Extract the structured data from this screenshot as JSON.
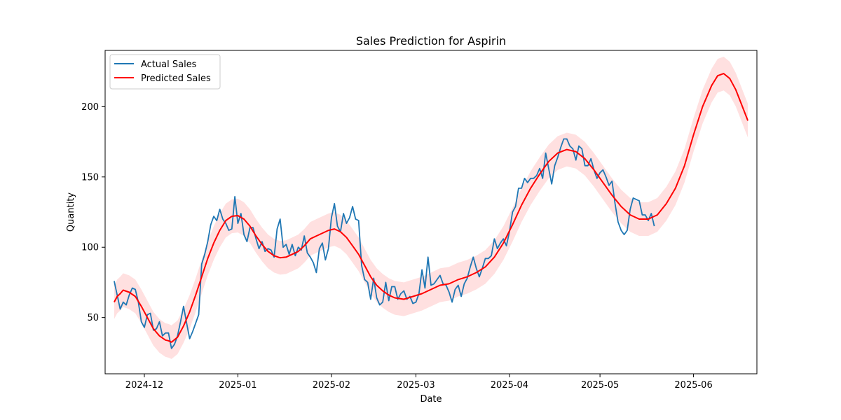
{
  "chart_data": {
    "type": "line",
    "title": "Sales Prediction for Aspirin",
    "xlabel": "Date",
    "ylabel": "Quantity",
    "xlim": [
      "2024-11-18",
      "2025-06-22"
    ],
    "ylim": [
      10,
      240
    ],
    "x_ticks": [
      "2024-12-01",
      "2025-01-01",
      "2025-02-01",
      "2025-03-01",
      "2025-04-01",
      "2025-05-01",
      "2025-06-01"
    ],
    "x_tick_labels": [
      "2024-12",
      "2025-01",
      "2025-02",
      "2025-03",
      "2025-04",
      "2025-05",
      "2025-06"
    ],
    "y_ticks": [
      50,
      100,
      150,
      200
    ],
    "grid": false,
    "legend": "upper-left",
    "colors": {
      "actual": "#1f77b4",
      "predicted": "#ff0000",
      "band": "#ff0000"
    },
    "series": [
      {
        "name": "Actual Sales",
        "kind": "line",
        "points": [
          [
            "2024-11-21",
            76
          ],
          [
            "2024-11-22",
            66
          ],
          [
            "2024-11-23",
            56
          ],
          [
            "2024-11-24",
            61
          ],
          [
            "2024-11-25",
            59
          ],
          [
            "2024-11-26",
            66
          ],
          [
            "2024-11-27",
            71
          ],
          [
            "2024-11-28",
            70
          ],
          [
            "2024-11-29",
            61
          ],
          [
            "2024-11-30",
            47
          ],
          [
            "2024-12-01",
            43
          ],
          [
            "2024-12-02",
            52
          ],
          [
            "2024-12-03",
            53
          ],
          [
            "2024-12-04",
            41
          ],
          [
            "2024-12-05",
            42
          ],
          [
            "2024-12-06",
            47
          ],
          [
            "2024-12-07",
            37
          ],
          [
            "2024-12-08",
            39
          ],
          [
            "2024-12-09",
            39
          ],
          [
            "2024-12-10",
            28
          ],
          [
            "2024-12-11",
            31
          ],
          [
            "2024-12-12",
            37
          ],
          [
            "2024-12-13",
            47
          ],
          [
            "2024-12-14",
            58
          ],
          [
            "2024-12-15",
            46
          ],
          [
            "2024-12-16",
            35
          ],
          [
            "2024-12-17",
            40
          ],
          [
            "2024-12-18",
            46
          ],
          [
            "2024-12-19",
            52
          ],
          [
            "2024-12-20",
            88
          ],
          [
            "2024-12-21",
            95
          ],
          [
            "2024-12-22",
            104
          ],
          [
            "2024-12-23",
            116
          ],
          [
            "2024-12-24",
            122
          ],
          [
            "2024-12-25",
            119
          ],
          [
            "2024-12-26",
            127
          ],
          [
            "2024-12-27",
            120
          ],
          [
            "2024-12-28",
            117
          ],
          [
            "2024-12-29",
            112
          ],
          [
            "2024-12-30",
            113
          ],
          [
            "2024-12-31",
            136
          ],
          [
            "2025-01-01",
            117
          ],
          [
            "2025-01-02",
            124
          ],
          [
            "2025-01-03",
            109
          ],
          [
            "2025-01-04",
            104
          ],
          [
            "2025-01-05",
            114
          ],
          [
            "2025-01-06",
            114
          ],
          [
            "2025-01-07",
            106
          ],
          [
            "2025-01-08",
            99
          ],
          [
            "2025-01-09",
            104
          ],
          [
            "2025-01-10",
            97
          ],
          [
            "2025-01-11",
            99
          ],
          [
            "2025-01-12",
            98
          ],
          [
            "2025-01-13",
            93
          ],
          [
            "2025-01-14",
            113
          ],
          [
            "2025-01-15",
            120
          ],
          [
            "2025-01-16",
            100
          ],
          [
            "2025-01-17",
            102
          ],
          [
            "2025-01-18",
            95
          ],
          [
            "2025-01-19",
            102
          ],
          [
            "2025-01-20",
            94
          ],
          [
            "2025-01-21",
            100
          ],
          [
            "2025-01-22",
            98
          ],
          [
            "2025-01-23",
            108
          ],
          [
            "2025-01-24",
            96
          ],
          [
            "2025-01-25",
            93
          ],
          [
            "2025-01-26",
            89
          ],
          [
            "2025-01-27",
            82
          ],
          [
            "2025-01-28",
            99
          ],
          [
            "2025-01-29",
            103
          ],
          [
            "2025-01-30",
            91
          ],
          [
            "2025-01-31",
            99
          ],
          [
            "2025-02-01",
            121
          ],
          [
            "2025-02-02",
            131
          ],
          [
            "2025-02-03",
            115
          ],
          [
            "2025-02-04",
            111
          ],
          [
            "2025-02-05",
            124
          ],
          [
            "2025-02-06",
            117
          ],
          [
            "2025-02-07",
            121
          ],
          [
            "2025-02-08",
            129
          ],
          [
            "2025-02-09",
            120
          ],
          [
            "2025-02-10",
            119
          ],
          [
            "2025-02-11",
            87
          ],
          [
            "2025-02-12",
            77
          ],
          [
            "2025-02-13",
            75
          ],
          [
            "2025-02-14",
            63
          ],
          [
            "2025-02-15",
            78
          ],
          [
            "2025-02-16",
            64
          ],
          [
            "2025-02-17",
            59
          ],
          [
            "2025-02-18",
            61
          ],
          [
            "2025-02-19",
            75
          ],
          [
            "2025-02-20",
            62
          ],
          [
            "2025-02-21",
            72
          ],
          [
            "2025-02-22",
            72
          ],
          [
            "2025-02-23",
            63
          ],
          [
            "2025-02-24",
            67
          ],
          [
            "2025-02-25",
            69
          ],
          [
            "2025-02-26",
            63
          ],
          [
            "2025-02-27",
            65
          ],
          [
            "2025-02-28",
            60
          ],
          [
            "2025-03-01",
            61
          ],
          [
            "2025-03-02",
            67
          ],
          [
            "2025-03-03",
            84
          ],
          [
            "2025-03-04",
            71
          ],
          [
            "2025-03-05",
            93
          ],
          [
            "2025-03-06",
            73
          ],
          [
            "2025-03-07",
            74
          ],
          [
            "2025-03-08",
            77
          ],
          [
            "2025-03-09",
            80
          ],
          [
            "2025-03-10",
            74
          ],
          [
            "2025-03-11",
            73
          ],
          [
            "2025-03-12",
            68
          ],
          [
            "2025-03-13",
            61
          ],
          [
            "2025-03-14",
            70
          ],
          [
            "2025-03-15",
            73
          ],
          [
            "2025-03-16",
            65
          ],
          [
            "2025-03-17",
            74
          ],
          [
            "2025-03-18",
            78
          ],
          [
            "2025-03-19",
            86
          ],
          [
            "2025-03-20",
            93
          ],
          [
            "2025-03-21",
            85
          ],
          [
            "2025-03-22",
            79
          ],
          [
            "2025-03-23",
            85
          ],
          [
            "2025-03-24",
            92
          ],
          [
            "2025-03-25",
            92
          ],
          [
            "2025-03-26",
            94
          ],
          [
            "2025-03-27",
            106
          ],
          [
            "2025-03-28",
            99
          ],
          [
            "2025-03-29",
            103
          ],
          [
            "2025-03-30",
            106
          ],
          [
            "2025-03-31",
            101
          ],
          [
            "2025-04-01",
            111
          ],
          [
            "2025-04-02",
            125
          ],
          [
            "2025-04-03",
            129
          ],
          [
            "2025-04-04",
            142
          ],
          [
            "2025-04-05",
            142
          ],
          [
            "2025-04-06",
            149
          ],
          [
            "2025-04-07",
            146
          ],
          [
            "2025-04-08",
            149
          ],
          [
            "2025-04-09",
            149
          ],
          [
            "2025-04-10",
            151
          ],
          [
            "2025-04-11",
            156
          ],
          [
            "2025-04-12",
            149
          ],
          [
            "2025-04-13",
            167
          ],
          [
            "2025-04-14",
            156
          ],
          [
            "2025-04-15",
            145
          ],
          [
            "2025-04-16",
            158
          ],
          [
            "2025-04-17",
            164
          ],
          [
            "2025-04-18",
            171
          ],
          [
            "2025-04-19",
            177
          ],
          [
            "2025-04-20",
            177
          ],
          [
            "2025-04-21",
            172
          ],
          [
            "2025-04-22",
            170
          ],
          [
            "2025-04-23",
            162
          ],
          [
            "2025-04-24",
            172
          ],
          [
            "2025-04-25",
            170
          ],
          [
            "2025-04-26",
            158
          ],
          [
            "2025-04-27",
            158
          ],
          [
            "2025-04-28",
            163
          ],
          [
            "2025-04-29",
            155
          ],
          [
            "2025-04-30",
            149
          ],
          [
            "2025-05-01",
            153
          ],
          [
            "2025-05-02",
            155
          ],
          [
            "2025-05-03",
            150
          ],
          [
            "2025-05-04",
            144
          ],
          [
            "2025-05-05",
            147
          ],
          [
            "2025-05-06",
            131
          ],
          [
            "2025-05-07",
            118
          ],
          [
            "2025-05-08",
            112
          ],
          [
            "2025-05-09",
            109
          ],
          [
            "2025-05-10",
            112
          ],
          [
            "2025-05-11",
            127
          ],
          [
            "2025-05-12",
            135
          ],
          [
            "2025-05-13",
            134
          ],
          [
            "2025-05-14",
            133
          ],
          [
            "2025-05-15",
            123
          ],
          [
            "2025-05-16",
            123
          ],
          [
            "2025-05-17",
            119
          ],
          [
            "2025-05-18",
            124
          ],
          [
            "2025-05-19",
            115
          ]
        ]
      },
      {
        "name": "Predicted Sales",
        "kind": "line",
        "points": [
          [
            "2024-11-21",
            61
          ],
          [
            "2024-11-22",
            65
          ],
          [
            "2024-11-23",
            67
          ],
          [
            "2024-11-24",
            69.5
          ],
          [
            "2024-11-26",
            68
          ],
          [
            "2024-11-28",
            65
          ],
          [
            "2024-11-30",
            58
          ],
          [
            "2024-12-02",
            50
          ],
          [
            "2024-12-04",
            42
          ],
          [
            "2024-12-06",
            37
          ],
          [
            "2024-12-08",
            34
          ],
          [
            "2024-12-09",
            33.5
          ],
          [
            "2024-12-10",
            32.5
          ],
          [
            "2024-12-12",
            36
          ],
          [
            "2024-12-14",
            44
          ],
          [
            "2024-12-16",
            54
          ],
          [
            "2024-12-18",
            66
          ],
          [
            "2024-12-20",
            79
          ],
          [
            "2024-12-22",
            92
          ],
          [
            "2024-12-24",
            103
          ],
          [
            "2024-12-26",
            112
          ],
          [
            "2024-12-28",
            119
          ],
          [
            "2024-12-30",
            122
          ],
          [
            "2025-01-01",
            122.5
          ],
          [
            "2025-01-03",
            120
          ],
          [
            "2025-01-05",
            115
          ],
          [
            "2025-01-07",
            108
          ],
          [
            "2025-01-09",
            102
          ],
          [
            "2025-01-11",
            97
          ],
          [
            "2025-01-13",
            94
          ],
          [
            "2025-01-15",
            92.5
          ],
          [
            "2025-01-17",
            93
          ],
          [
            "2025-01-19",
            95
          ],
          [
            "2025-01-21",
            97
          ],
          [
            "2025-01-23",
            101
          ],
          [
            "2025-01-25",
            106
          ],
          [
            "2025-01-27",
            108
          ],
          [
            "2025-01-29",
            110
          ],
          [
            "2025-01-31",
            112
          ],
          [
            "2025-02-02",
            113
          ],
          [
            "2025-02-04",
            111
          ],
          [
            "2025-02-06",
            107
          ],
          [
            "2025-02-08",
            101
          ],
          [
            "2025-02-10",
            95
          ],
          [
            "2025-02-12",
            87
          ],
          [
            "2025-02-14",
            79
          ],
          [
            "2025-02-16",
            73
          ],
          [
            "2025-02-18",
            69
          ],
          [
            "2025-02-20",
            66
          ],
          [
            "2025-02-22",
            64
          ],
          [
            "2025-02-25",
            63
          ],
          [
            "2025-02-28",
            65
          ],
          [
            "2025-03-03",
            67
          ],
          [
            "2025-03-06",
            70
          ],
          [
            "2025-03-09",
            73
          ],
          [
            "2025-03-12",
            74
          ],
          [
            "2025-03-15",
            77
          ],
          [
            "2025-03-18",
            79
          ],
          [
            "2025-03-21",
            82
          ],
          [
            "2025-03-24",
            86
          ],
          [
            "2025-03-27",
            93
          ],
          [
            "2025-03-30",
            103
          ],
          [
            "2025-04-02",
            116
          ],
          [
            "2025-04-05",
            130
          ],
          [
            "2025-04-08",
            142
          ],
          [
            "2025-04-11",
            152
          ],
          [
            "2025-04-14",
            161
          ],
          [
            "2025-04-17",
            167
          ],
          [
            "2025-04-20",
            169.5
          ],
          [
            "2025-04-23",
            168
          ],
          [
            "2025-04-26",
            163
          ],
          [
            "2025-04-29",
            155
          ],
          [
            "2025-05-02",
            146
          ],
          [
            "2025-05-05",
            137
          ],
          [
            "2025-05-08",
            129
          ],
          [
            "2025-05-11",
            123
          ],
          [
            "2025-05-14",
            120
          ],
          [
            "2025-05-17",
            120
          ],
          [
            "2025-05-20",
            123
          ],
          [
            "2025-05-23",
            131
          ],
          [
            "2025-05-26",
            142
          ],
          [
            "2025-05-29",
            158
          ],
          [
            "2025-06-01",
            180
          ],
          [
            "2025-06-04",
            200
          ],
          [
            "2025-06-07",
            215
          ],
          [
            "2025-06-09",
            222
          ],
          [
            "2025-06-11",
            223.5
          ],
          [
            "2025-06-13",
            220
          ],
          [
            "2025-06-15",
            212
          ],
          [
            "2025-06-17",
            201
          ],
          [
            "2025-06-19",
            190
          ]
        ]
      }
    ],
    "band": {
      "series": "Predicted Sales",
      "half_width": 12
    }
  }
}
